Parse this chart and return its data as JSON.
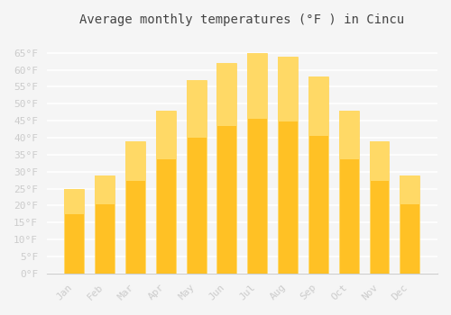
{
  "title": "Average monthly temperatures (°F ) in Cincu",
  "months": [
    "Jan",
    "Feb",
    "Mar",
    "Apr",
    "May",
    "Jun",
    "Jul",
    "Aug",
    "Sep",
    "Oct",
    "Nov",
    "Dec"
  ],
  "values": [
    25,
    29,
    39,
    48,
    57,
    62,
    65,
    64,
    58,
    48,
    39,
    29
  ],
  "bar_color_top": "#FFC125",
  "bar_color_bottom": "#FFD966",
  "background_color": "#F5F5F5",
  "grid_color": "#FFFFFF",
  "ylim": [
    0,
    70
  ],
  "yticks": [
    0,
    5,
    10,
    15,
    20,
    25,
    30,
    35,
    40,
    45,
    50,
    55,
    60,
    65
  ],
  "tick_label_color": "#CCCCCC",
  "title_color": "#444444",
  "bar_edge_color": "#FFA500",
  "font_family": "monospace"
}
